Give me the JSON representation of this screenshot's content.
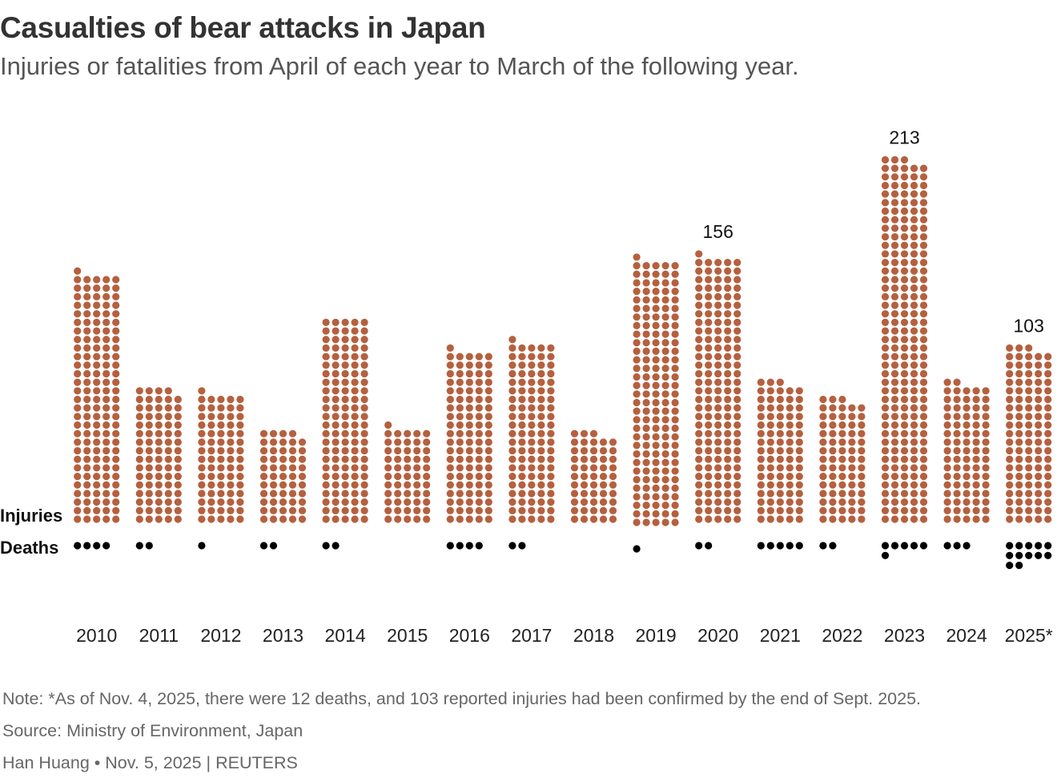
{
  "title": "Casualties of bear attacks in Japan",
  "subtitle": "Injuries or fatalities from April of each year to March of the following year.",
  "row_labels": {
    "injuries": "Injuries",
    "deaths": "Deaths"
  },
  "notes": {
    "note": "Note: *As of Nov. 4, 2025, there were 12 deaths, and 103 reported injuries had been confirmed by the end of Sept. 2025.",
    "source": "Source: Ministry of Environment, Japan",
    "credit": "Han Huang • Nov. 5, 2025 | REUTERS"
  },
  "colors": {
    "injuries": "#B5603F",
    "deaths": "#000000"
  },
  "chart_data": {
    "type": "dot-matrix bar",
    "title": "Casualties of bear attacks in Japan",
    "dots_per_row": 5,
    "categories": [
      "2010",
      "2011",
      "2012",
      "2013",
      "2014",
      "2015",
      "2016",
      "2017",
      "2018",
      "2019",
      "2020",
      "2021",
      "2022",
      "2023",
      "2024",
      "2025*"
    ],
    "series": [
      {
        "name": "Injuries",
        "values": [
          146,
          79,
          76,
          54,
          120,
          56,
          101,
          106,
          53,
          156,
          156,
          83,
          73,
          213,
          82,
          103
        ]
      },
      {
        "name": "Deaths",
        "values": [
          4,
          2,
          1,
          2,
          2,
          0,
          4,
          2,
          0,
          1,
          2,
          5,
          2,
          6,
          3,
          12
        ]
      }
    ],
    "annotations": [
      {
        "category": "2020",
        "text": "156"
      },
      {
        "category": "2023",
        "text": "213"
      },
      {
        "category": "2025*",
        "text": "103"
      }
    ]
  }
}
